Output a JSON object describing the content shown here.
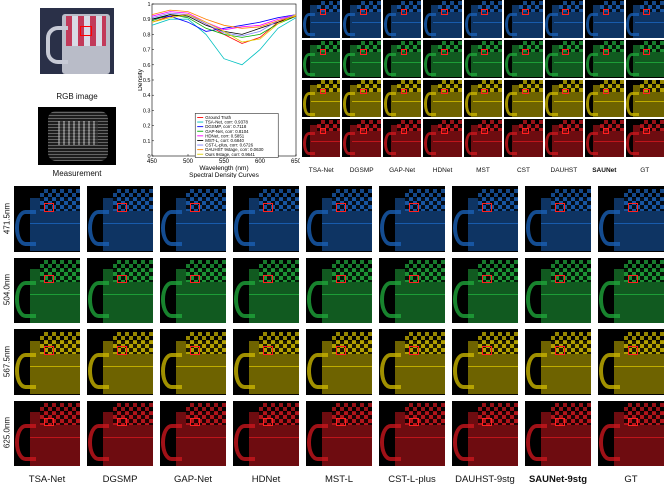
{
  "left_panel": {
    "rgb_label": "RGB image",
    "measurement_label": "Measurement"
  },
  "chart_data": {
    "type": "line",
    "title": "Spectral Density Curves",
    "xlabel": "Wavelength (nm)",
    "ylabel": "Density",
    "xlim": [
      450,
      650
    ],
    "ylim": [
      0,
      1
    ],
    "xticks": [
      450,
      500,
      550,
      600,
      650
    ],
    "yticks": [
      0,
      0.1,
      0.2,
      0.3,
      0.4,
      0.5,
      0.6,
      0.7,
      0.8,
      0.9,
      1
    ],
    "x": [
      450,
      475,
      500,
      525,
      550,
      575,
      600,
      625,
      650
    ],
    "legend_position": "bottom-right",
    "series": [
      {
        "name": "Ground Truth",
        "color": "#ff0000",
        "values": [
          0.88,
          0.92,
          0.93,
          0.87,
          0.8,
          0.74,
          0.78,
          0.88,
          0.93
        ]
      },
      {
        "name": "TSA-Net, corr: 0.9378",
        "color": "#00c0c0",
        "values": [
          0.86,
          0.9,
          0.9,
          0.8,
          0.64,
          0.6,
          0.7,
          0.84,
          0.91
        ]
      },
      {
        "name": "DGSMP, corr: 0.7118",
        "color": "#0000ff",
        "values": [
          0.9,
          0.92,
          0.88,
          0.82,
          0.84,
          0.86,
          0.88,
          0.91,
          0.93
        ]
      },
      {
        "name": "GAP-Net, corr: 0.8104",
        "color": "#00aa00",
        "values": [
          0.89,
          0.93,
          0.91,
          0.84,
          0.8,
          0.78,
          0.8,
          0.87,
          0.92
        ]
      },
      {
        "name": "HDNet, corr: 0.5851",
        "color": "#ff00ff",
        "values": [
          0.92,
          0.95,
          0.94,
          0.88,
          0.83,
          0.85,
          0.86,
          0.9,
          0.93
        ]
      },
      {
        "name": "MST-L, corr: 0.6840",
        "color": "#000000",
        "values": [
          0.9,
          0.93,
          0.92,
          0.86,
          0.82,
          0.8,
          0.84,
          0.88,
          0.92
        ]
      },
      {
        "name": "CST-L-plus, corr: 0.6726",
        "color": "#8080ff",
        "values": [
          0.91,
          0.94,
          0.93,
          0.87,
          0.81,
          0.79,
          0.82,
          0.89,
          0.93
        ]
      },
      {
        "name": "DAUHST 9stage, corr: 0.0630",
        "color": "#ff8000",
        "values": [
          0.93,
          0.96,
          0.95,
          0.9,
          0.86,
          0.84,
          0.85,
          0.89,
          0.92
        ]
      },
      {
        "name": "Ours 9stage, corr: 0.9641",
        "color": "#e0d000",
        "values": [
          0.88,
          0.91,
          0.93,
          0.88,
          0.82,
          0.75,
          0.77,
          0.87,
          0.93
        ]
      }
    ]
  },
  "methods_top": [
    "TSA-Net",
    "DGSMP",
    "GAP-Net",
    "HDNet",
    "MST",
    "CST",
    "DAUHST",
    "SAUNet",
    "GT"
  ],
  "methods_bottom": [
    "TSA-Net",
    "DGSMP",
    "GAP-Net",
    "HDNet",
    "MST-L",
    "CST-L-plus",
    "DAUHST-9stg",
    "SAUNet-9stg",
    "GT"
  ],
  "wavelengths": [
    "471.5nm",
    "504.0nm",
    "567.5nm",
    "625.0nm"
  ],
  "colors": {
    "blue": "#1a5fb4",
    "green": "#1fa43a",
    "yellow": "#c8b400",
    "red": "#c8161d"
  }
}
